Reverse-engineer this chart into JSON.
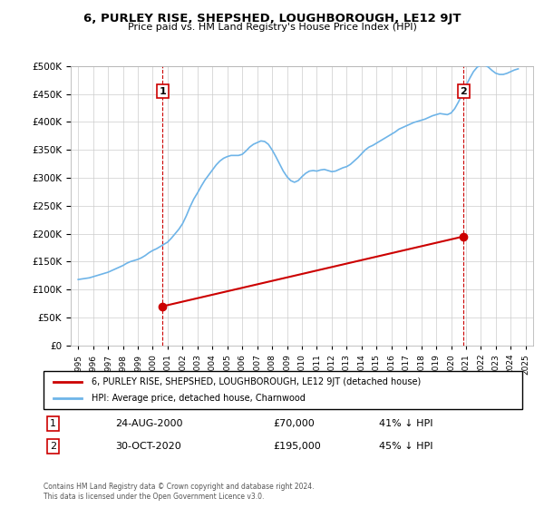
{
  "title": "6, PURLEY RISE, SHEPSHED, LOUGHBOROUGH, LE12 9JT",
  "subtitle": "Price paid vs. HM Land Registry's House Price Index (HPI)",
  "legend_line1": "6, PURLEY RISE, SHEPSHED, LOUGHBOROUGH, LE12 9JT (detached house)",
  "legend_line2": "HPI: Average price, detached house, Charnwood",
  "annotation1_label": "1",
  "annotation1_date": "24-AUG-2000",
  "annotation1_price": "£70,000",
  "annotation1_hpi": "41% ↓ HPI",
  "annotation1_year": 2000.65,
  "annotation1_price_val": 70000,
  "annotation2_label": "2",
  "annotation2_date": "30-OCT-2020",
  "annotation2_price": "£195,000",
  "annotation2_hpi": "45% ↓ HPI",
  "annotation2_year": 2020.83,
  "annotation2_price_val": 195000,
  "footnote1": "Contains HM Land Registry data © Crown copyright and database right 2024.",
  "footnote2": "This data is licensed under the Open Government Licence v3.0.",
  "hpi_color": "#6eb4e8",
  "paid_color": "#cc0000",
  "marker_color": "#cc0000",
  "vline_color": "#cc0000",
  "background_color": "#ffffff",
  "ylim": [
    0,
    500000
  ],
  "yticks": [
    0,
    50000,
    100000,
    150000,
    200000,
    250000,
    300000,
    350000,
    400000,
    450000,
    500000
  ],
  "xlim_start": 1994.5,
  "xlim_end": 2025.5,
  "hpi_data": {
    "years": [
      1995.0,
      1995.25,
      1995.5,
      1995.75,
      1996.0,
      1996.25,
      1996.5,
      1996.75,
      1997.0,
      1997.25,
      1997.5,
      1997.75,
      1998.0,
      1998.25,
      1998.5,
      1998.75,
      1999.0,
      1999.25,
      1999.5,
      1999.75,
      2000.0,
      2000.25,
      2000.5,
      2000.75,
      2001.0,
      2001.25,
      2001.5,
      2001.75,
      2002.0,
      2002.25,
      2002.5,
      2002.75,
      2003.0,
      2003.25,
      2003.5,
      2003.75,
      2004.0,
      2004.25,
      2004.5,
      2004.75,
      2005.0,
      2005.25,
      2005.5,
      2005.75,
      2006.0,
      2006.25,
      2006.5,
      2006.75,
      2007.0,
      2007.25,
      2007.5,
      2007.75,
      2008.0,
      2008.25,
      2008.5,
      2008.75,
      2009.0,
      2009.25,
      2009.5,
      2009.75,
      2010.0,
      2010.25,
      2010.5,
      2010.75,
      2011.0,
      2011.25,
      2011.5,
      2011.75,
      2012.0,
      2012.25,
      2012.5,
      2012.75,
      2013.0,
      2013.25,
      2013.5,
      2013.75,
      2014.0,
      2014.25,
      2014.5,
      2014.75,
      2015.0,
      2015.25,
      2015.5,
      2015.75,
      2016.0,
      2016.25,
      2016.5,
      2016.75,
      2017.0,
      2017.25,
      2017.5,
      2017.75,
      2018.0,
      2018.25,
      2018.5,
      2018.75,
      2019.0,
      2019.25,
      2019.5,
      2019.75,
      2020.0,
      2020.25,
      2020.5,
      2020.75,
      2021.0,
      2021.25,
      2021.5,
      2021.75,
      2022.0,
      2022.25,
      2022.5,
      2022.75,
      2023.0,
      2023.25,
      2023.5,
      2023.75,
      2024.0,
      2024.25,
      2024.5
    ],
    "values": [
      118000,
      119000,
      120000,
      121000,
      123000,
      125000,
      127000,
      129000,
      131000,
      134000,
      137000,
      140000,
      143000,
      147000,
      150000,
      152000,
      154000,
      157000,
      161000,
      166000,
      170000,
      173000,
      177000,
      181000,
      185000,
      192000,
      200000,
      208000,
      218000,
      232000,
      248000,
      262000,
      273000,
      285000,
      296000,
      305000,
      314000,
      323000,
      330000,
      335000,
      338000,
      340000,
      340000,
      340000,
      342000,
      348000,
      355000,
      360000,
      363000,
      366000,
      365000,
      360000,
      350000,
      338000,
      325000,
      312000,
      302000,
      295000,
      292000,
      295000,
      302000,
      308000,
      312000,
      313000,
      312000,
      314000,
      315000,
      313000,
      311000,
      312000,
      315000,
      318000,
      320000,
      324000,
      330000,
      336000,
      343000,
      350000,
      355000,
      358000,
      362000,
      366000,
      370000,
      374000,
      378000,
      382000,
      387000,
      390000,
      393000,
      396000,
      399000,
      401000,
      403000,
      405000,
      408000,
      411000,
      413000,
      415000,
      414000,
      413000,
      416000,
      424000,
      436000,
      450000,
      465000,
      478000,
      490000,
      498000,
      502000,
      502000,
      498000,
      492000,
      487000,
      485000,
      485000,
      487000,
      490000,
      493000,
      495000
    ]
  },
  "paid_data": {
    "years": [
      2000.65,
      2020.83
    ],
    "values": [
      70000,
      195000
    ]
  }
}
